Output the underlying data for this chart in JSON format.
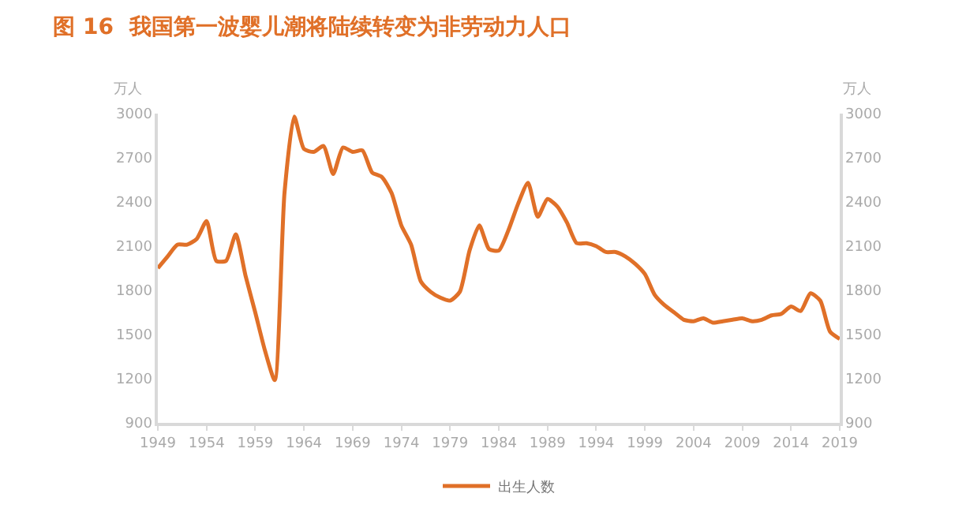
{
  "chart_data": {
    "type": "line",
    "title": "图 16  我国第一波婴儿潮将陆续转变为非劳动力人口",
    "ylabel": "万人",
    "y2label": "万人",
    "x": [
      1949,
      1950,
      1951,
      1952,
      1953,
      1954,
      1955,
      1956,
      1957,
      1958,
      1959,
      1960,
      1961,
      1962,
      1963,
      1964,
      1965,
      1966,
      1967,
      1968,
      1969,
      1970,
      1971,
      1972,
      1973,
      1974,
      1975,
      1976,
      1977,
      1978,
      1979,
      1980,
      1981,
      1982,
      1983,
      1984,
      1985,
      1986,
      1987,
      1988,
      1989,
      1990,
      1991,
      1992,
      1993,
      1994,
      1995,
      1996,
      1997,
      1998,
      1999,
      2000,
      2001,
      2002,
      2003,
      2004,
      2005,
      2006,
      2007,
      2008,
      2009,
      2010,
      2011,
      2012,
      2013,
      2014,
      2015,
      2016,
      2017,
      2018,
      2019
    ],
    "series": [
      {
        "name": "出生人数",
        "color": "#e07028",
        "values": [
          1950,
          2030,
          2110,
          2110,
          2150,
          2270,
          2000,
          2000,
          2180,
          1900,
          1650,
          1390,
          1190,
          2460,
          2980,
          2760,
          2740,
          2780,
          2590,
          2770,
          2740,
          2750,
          2600,
          2570,
          2460,
          2240,
          2110,
          1860,
          1790,
          1750,
          1730,
          1790,
          2070,
          2240,
          2080,
          2070,
          2210,
          2390,
          2530,
          2300,
          2420,
          2370,
          2260,
          2120,
          2120,
          2100,
          2060,
          2060,
          2030,
          1980,
          1910,
          1770,
          1700,
          1650,
          1600,
          1590,
          1610,
          1580,
          1590,
          1600,
          1610,
          1590,
          1600,
          1630,
          1640,
          1690,
          1660,
          1780,
          1730,
          1520,
          1470
        ]
      }
    ],
    "xlim": [
      1949,
      2019
    ],
    "xticks": [
      1949,
      1954,
      1959,
      1964,
      1969,
      1974,
      1979,
      1984,
      1989,
      1994,
      1999,
      2004,
      2009,
      2014,
      2019
    ],
    "ylim": [
      900,
      3000
    ],
    "yticks": [
      900,
      1200,
      1500,
      1800,
      2100,
      2400,
      2700,
      3000
    ],
    "y2lim": [
      900,
      3000
    ],
    "y2ticks": [
      900,
      1200,
      1500,
      1800,
      2100,
      2400,
      2700,
      3000
    ],
    "legend": "bottom",
    "marker": "none",
    "line_style": "solid"
  }
}
